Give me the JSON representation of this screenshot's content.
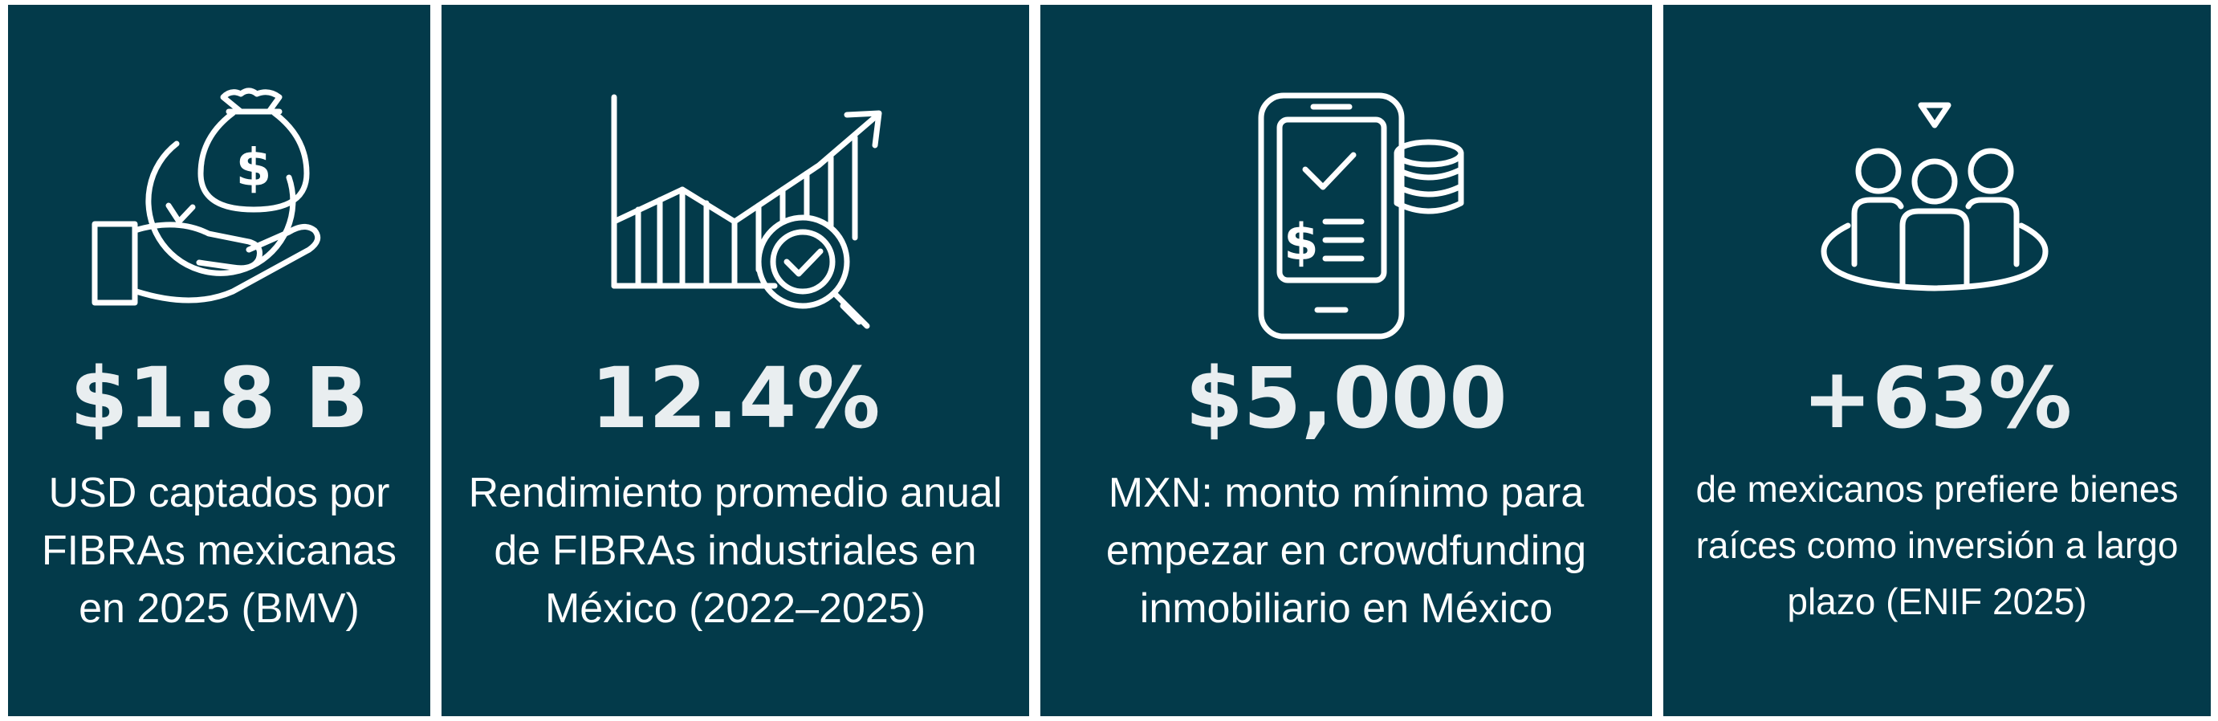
{
  "colors": {
    "card_background": "#033a4a",
    "stat_text": "#e9eef0",
    "description_text": "#ffffff"
  },
  "cards": [
    {
      "icon": "hand-money-bag-icon",
      "stat": "$1.8 B",
      "icon_text": "$",
      "description": "USD captados por\nFIBRAs mexicanas\nen 2025 (BMV)"
    },
    {
      "icon": "growth-chart-magnifier-icon",
      "stat": "12.4%",
      "description": "Rendimiento promedio anual\nde FIBRAs industriales en\nMéxico (2022–2025)"
    },
    {
      "icon": "smartphone-payment-icon",
      "stat": "$5,000",
      "icon_text": "$",
      "description": "MXN: monto mínimo para\nempezar en crowdfunding\ninmobiliario en México"
    },
    {
      "icon": "people-group-icon",
      "stat": "+63%",
      "description": "de mexicanos prefiere bienes\nraíces como inversión a largo\nplazo (ENIF 2025)"
    }
  ]
}
